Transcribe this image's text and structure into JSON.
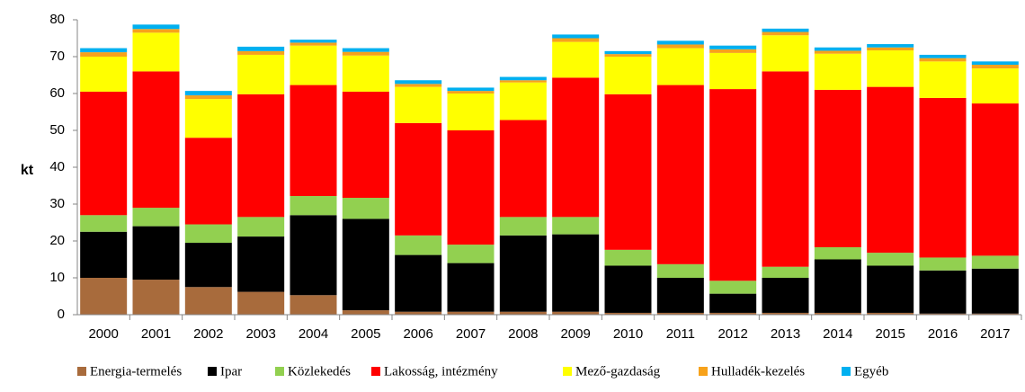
{
  "chart_data": {
    "type": "stacked_bar",
    "y_label": "kt",
    "categories": [
      "2000",
      "2001",
      "2002",
      "2003",
      "2004",
      "2005",
      "2006",
      "2007",
      "2008",
      "2009",
      "2010",
      "2011",
      "2012",
      "2013",
      "2014",
      "2015",
      "2016",
      "2017"
    ],
    "series": [
      {
        "name": "Energia-termelés",
        "color": "#a86b3c",
        "values": [
          10,
          9.5,
          7.5,
          6.2,
          5.3,
          1.2,
          0.8,
          0.8,
          0.8,
          0.8,
          0.5,
          0.5,
          0.5,
          0.5,
          0.5,
          0.5,
          0.3,
          0.3
        ]
      },
      {
        "name": "Ipar",
        "color": "#000000",
        "values": [
          12.5,
          14.5,
          12,
          15,
          21.7,
          24.8,
          15.4,
          13.2,
          20.7,
          21,
          12.8,
          9.5,
          5.2,
          9.5,
          14.5,
          12.8,
          11.7,
          12.2
        ]
      },
      {
        "name": "Közlekedés",
        "color": "#92d050",
        "values": [
          4.5,
          5,
          5,
          5.3,
          5.2,
          5.7,
          5.3,
          5,
          5,
          4.7,
          4.3,
          3.7,
          3.5,
          3,
          3.3,
          3.5,
          3.5,
          3.5
        ]
      },
      {
        "name": "Lakosság, intézmény",
        "color": "#ff0000",
        "values": [
          33.5,
          37,
          23.5,
          33.3,
          30.1,
          28.8,
          30.5,
          31,
          26.3,
          37.8,
          42.2,
          48.6,
          52,
          53,
          42.7,
          45,
          43.3,
          41.3
        ]
      },
      {
        "name": "Mező-gazdaság",
        "color": "#ffff00",
        "values": [
          9.5,
          10.5,
          10.5,
          10.7,
          10.7,
          9.8,
          9.8,
          10,
          10.2,
          9.7,
          10.2,
          10,
          9.8,
          9.8,
          9.8,
          9.9,
          9.9,
          9.5
        ]
      },
      {
        "name": "Hulladék-kezelés",
        "color": "#f7a21b",
        "values": [
          1.2,
          1,
          1,
          1,
          0.8,
          1,
          0.8,
          0.7,
          0.6,
          1,
          0.7,
          1,
          1,
          0.9,
          0.8,
          0.8,
          0.9,
          1
        ]
      },
      {
        "name": "Egyéb",
        "color": "#00b0f0",
        "values": [
          1.1,
          1.2,
          1.2,
          1.2,
          0.8,
          1,
          1,
          0.9,
          0.9,
          1,
          0.8,
          1,
          1,
          0.9,
          0.9,
          0.9,
          0.9,
          0.9
        ]
      }
    ],
    "ylim": [
      0,
      80
    ],
    "yticks": [
      0,
      10,
      20,
      30,
      40,
      50,
      60,
      70,
      80
    ],
    "grid": false,
    "legend": "bottom"
  }
}
